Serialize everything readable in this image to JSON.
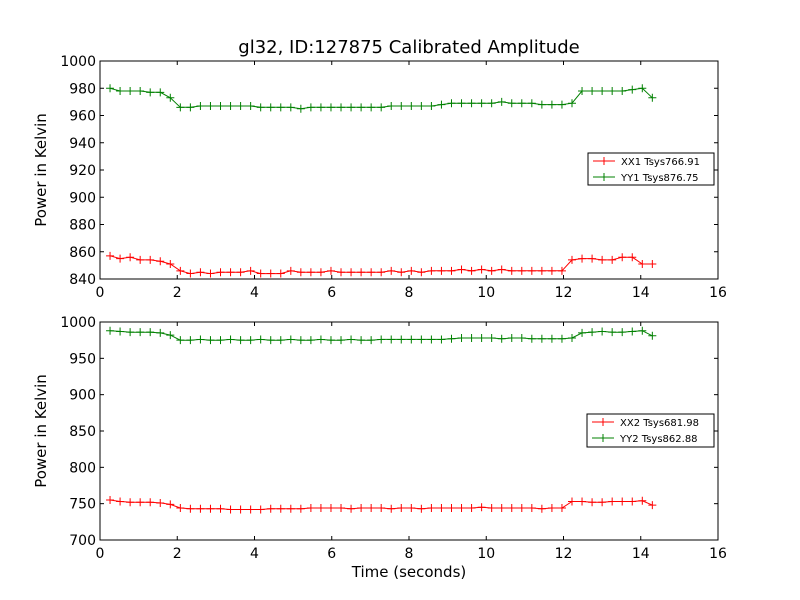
{
  "chart_data": [
    {
      "type": "line",
      "title": "gl32, ID:127875 Calibrated Amplitude",
      "xlabel": "",
      "ylabel": "Power in Kelvin",
      "xlim": [
        0,
        16
      ],
      "ylim": [
        840,
        1000
      ],
      "xticks": [
        0,
        2,
        4,
        6,
        8,
        10,
        12,
        14,
        16
      ],
      "yticks": [
        840,
        860,
        880,
        900,
        920,
        940,
        960,
        980,
        1000
      ],
      "legend_position": "center-right",
      "series": [
        {
          "name": "XX1 Tsys766.91",
          "color": "#ff0000",
          "x": [
            0.26,
            0.52,
            0.78,
            1.04,
            1.3,
            1.56,
            1.82,
            2.08,
            2.34,
            2.6,
            2.86,
            3.12,
            3.38,
            3.64,
            3.9,
            4.16,
            4.42,
            4.68,
            4.94,
            5.2,
            5.46,
            5.72,
            5.98,
            6.24,
            6.5,
            6.76,
            7.02,
            7.28,
            7.54,
            7.8,
            8.06,
            8.32,
            8.58,
            8.84,
            9.1,
            9.36,
            9.62,
            9.88,
            10.14,
            10.4,
            10.66,
            10.92,
            11.18,
            11.44,
            11.7,
            11.96,
            12.22,
            12.48,
            12.74,
            13.0,
            13.26,
            13.52,
            13.78,
            14.04,
            14.3
          ],
          "y": [
            857,
            855,
            856,
            854,
            854,
            853,
            851,
            846,
            844,
            845,
            844,
            845,
            845,
            845,
            846,
            844,
            844,
            844,
            846,
            845,
            845,
            845,
            846,
            845,
            845,
            845,
            845,
            845,
            846,
            845,
            846,
            845,
            846,
            846,
            846,
            847,
            846,
            847,
            846,
            847,
            846,
            846,
            846,
            846,
            846,
            846,
            854,
            855,
            855,
            854,
            854,
            856,
            856,
            851,
            851
          ]
        },
        {
          "name": "YY1 Tsys876.75",
          "color": "#008000",
          "x": [
            0.26,
            0.52,
            0.78,
            1.04,
            1.3,
            1.56,
            1.82,
            2.08,
            2.34,
            2.6,
            2.86,
            3.12,
            3.38,
            3.64,
            3.9,
            4.16,
            4.42,
            4.68,
            4.94,
            5.2,
            5.46,
            5.72,
            5.98,
            6.24,
            6.5,
            6.76,
            7.02,
            7.28,
            7.54,
            7.8,
            8.06,
            8.32,
            8.58,
            8.84,
            9.1,
            9.36,
            9.62,
            9.88,
            10.14,
            10.4,
            10.66,
            10.92,
            11.18,
            11.44,
            11.7,
            11.96,
            12.22,
            12.48,
            12.74,
            13.0,
            13.26,
            13.52,
            13.78,
            14.04,
            14.3
          ],
          "y": [
            980,
            978,
            978,
            978,
            977,
            977,
            973,
            966,
            966,
            967,
            967,
            967,
            967,
            967,
            967,
            966,
            966,
            966,
            966,
            965,
            966,
            966,
            966,
            966,
            966,
            966,
            966,
            966,
            967,
            967,
            967,
            967,
            967,
            968,
            969,
            969,
            969,
            969,
            969,
            970,
            969,
            969,
            969,
            968,
            968,
            968,
            969,
            978,
            978,
            978,
            978,
            978,
            979,
            980,
            973
          ]
        }
      ]
    },
    {
      "type": "line",
      "title": "",
      "xlabel": "Time (seconds)",
      "ylabel": "Power in Kelvin",
      "xlim": [
        0,
        16
      ],
      "ylim": [
        700,
        1000
      ],
      "xticks": [
        0,
        2,
        4,
        6,
        8,
        10,
        12,
        14,
        16
      ],
      "yticks": [
        700,
        750,
        800,
        850,
        900,
        950,
        1000
      ],
      "legend_position": "center-right",
      "series": [
        {
          "name": "XX2 Tsys681.98",
          "color": "#ff0000",
          "x": [
            0.26,
            0.52,
            0.78,
            1.04,
            1.3,
            1.56,
            1.82,
            2.08,
            2.34,
            2.6,
            2.86,
            3.12,
            3.38,
            3.64,
            3.9,
            4.16,
            4.42,
            4.68,
            4.94,
            5.2,
            5.46,
            5.72,
            5.98,
            6.24,
            6.5,
            6.76,
            7.02,
            7.28,
            7.54,
            7.8,
            8.06,
            8.32,
            8.58,
            8.84,
            9.1,
            9.36,
            9.62,
            9.88,
            10.14,
            10.4,
            10.66,
            10.92,
            11.18,
            11.44,
            11.7,
            11.96,
            12.22,
            12.48,
            12.74,
            13.0,
            13.26,
            13.52,
            13.78,
            14.04,
            14.3
          ],
          "y": [
            755,
            753,
            752,
            752,
            752,
            751,
            749,
            744,
            743,
            743,
            743,
            743,
            742,
            742,
            742,
            742,
            743,
            743,
            743,
            743,
            744,
            744,
            744,
            744,
            743,
            744,
            744,
            744,
            743,
            744,
            744,
            743,
            744,
            744,
            744,
            744,
            744,
            745,
            744,
            744,
            744,
            744,
            744,
            743,
            744,
            744,
            753,
            753,
            752,
            752,
            753,
            753,
            753,
            754,
            748
          ]
        },
        {
          "name": "YY2 Tsys862.88",
          "color": "#008000",
          "x": [
            0.26,
            0.52,
            0.78,
            1.04,
            1.3,
            1.56,
            1.82,
            2.08,
            2.34,
            2.6,
            2.86,
            3.12,
            3.38,
            3.64,
            3.9,
            4.16,
            4.42,
            4.68,
            4.94,
            5.2,
            5.46,
            5.72,
            5.98,
            6.24,
            6.5,
            6.76,
            7.02,
            7.28,
            7.54,
            7.8,
            8.06,
            8.32,
            8.58,
            8.84,
            9.1,
            9.36,
            9.62,
            9.88,
            10.14,
            10.4,
            10.66,
            10.92,
            11.18,
            11.44,
            11.7,
            11.96,
            12.22,
            12.48,
            12.74,
            13.0,
            13.26,
            13.52,
            13.78,
            14.04,
            14.3
          ],
          "y": [
            988,
            987,
            986,
            986,
            986,
            985,
            982,
            975,
            975,
            976,
            975,
            975,
            976,
            975,
            975,
            976,
            975,
            975,
            976,
            975,
            975,
            976,
            975,
            975,
            976,
            975,
            975,
            976,
            976,
            976,
            976,
            976,
            976,
            976,
            977,
            978,
            978,
            978,
            978,
            977,
            978,
            978,
            977,
            977,
            977,
            977,
            978,
            985,
            986,
            987,
            986,
            986,
            987,
            988,
            981
          ]
        }
      ]
    }
  ]
}
